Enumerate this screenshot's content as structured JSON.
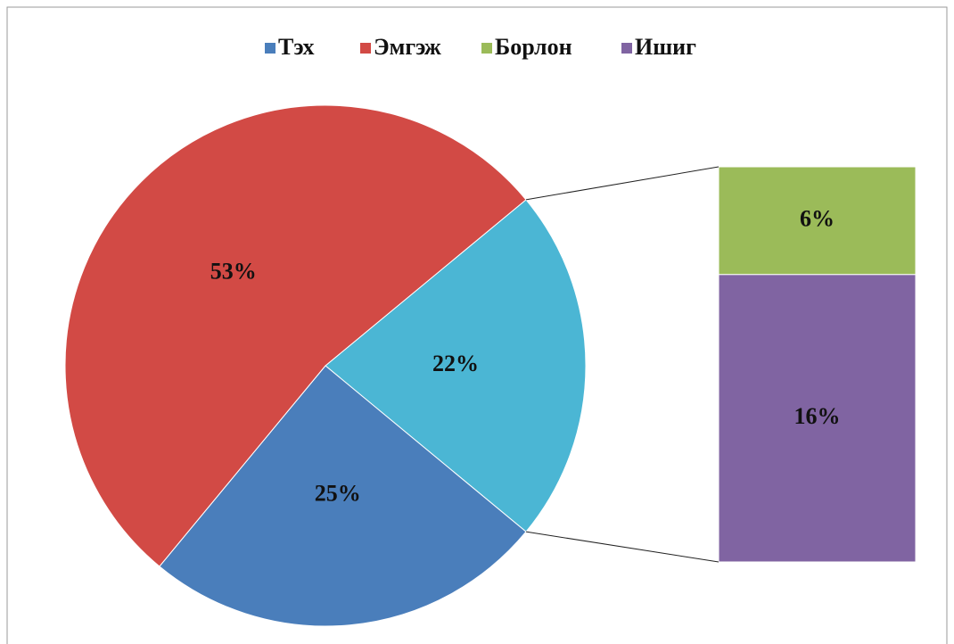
{
  "chart_data": {
    "type": "bar-of-pie",
    "categories": [
      "Тэх",
      "Эмгэж",
      "Борлон",
      "Ишиг"
    ],
    "values": [
      25,
      53,
      6,
      16
    ],
    "value_labels": [
      "25%",
      "53%",
      "6%",
      "16%"
    ],
    "colors": [
      "#4a7ebb",
      "#d24a45",
      "#9bbb59",
      "#8064a2"
    ],
    "pie_other": {
      "value": 22,
      "label": "22%",
      "color": "#4bb6d4"
    },
    "legend": "top"
  }
}
